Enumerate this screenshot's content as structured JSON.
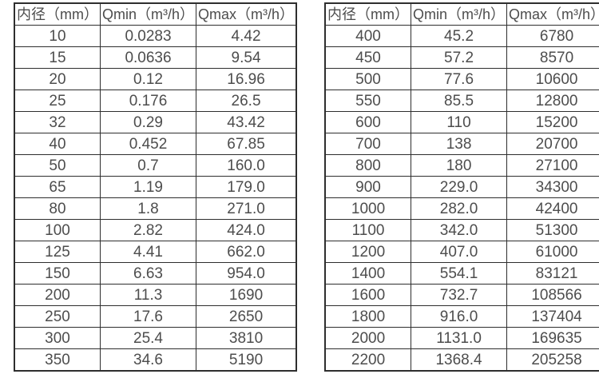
{
  "tables": [
    {
      "name": "small-diameter-flow-table",
      "headers": [
        "内径（mm）",
        "Qmin（m³/h）",
        "Qmax（m³/h）"
      ],
      "rows": [
        [
          "10",
          "0.0283",
          "4.42"
        ],
        [
          "15",
          "0.0636",
          "9.54"
        ],
        [
          "20",
          "0.12",
          "16.96"
        ],
        [
          "25",
          "0.176",
          "26.5"
        ],
        [
          "32",
          "0.29",
          "43.42"
        ],
        [
          "40",
          "0.452",
          "67.85"
        ],
        [
          "50",
          "0.7",
          "160.0"
        ],
        [
          "65",
          "1.19",
          "179.0"
        ],
        [
          "80",
          "1.8",
          "271.0"
        ],
        [
          "100",
          "2.82",
          "424.0"
        ],
        [
          "125",
          "4.41",
          "662.0"
        ],
        [
          "150",
          "6.63",
          "954.0"
        ],
        [
          "200",
          "11.3",
          "1690"
        ],
        [
          "250",
          "17.6",
          "2650"
        ],
        [
          "300",
          "25.4",
          "3810"
        ],
        [
          "350",
          "34.6",
          "5190"
        ]
      ]
    },
    {
      "name": "large-diameter-flow-table",
      "headers": [
        "内径（mm）",
        "Qmin（m³/h）",
        "Qmax（m³/h）"
      ],
      "rows": [
        [
          "400",
          "45.2",
          "6780"
        ],
        [
          "450",
          "57.2",
          "8570"
        ],
        [
          "500",
          "77.6",
          "10600"
        ],
        [
          "550",
          "85.5",
          "12800"
        ],
        [
          "600",
          "110",
          "15200"
        ],
        [
          "700",
          "138",
          "20700"
        ],
        [
          "800",
          "180",
          "27100"
        ],
        [
          "900",
          "229.0",
          "34300"
        ],
        [
          "1000",
          "282.0",
          "42400"
        ],
        [
          "1100",
          "342.0",
          "51300"
        ],
        [
          "1200",
          "407.0",
          "61000"
        ],
        [
          "1400",
          "554.1",
          "83121"
        ],
        [
          "1600",
          "732.7",
          "108566"
        ],
        [
          "1800",
          "916.0",
          "137404"
        ],
        [
          "2000",
          "1131.0",
          "169635"
        ],
        [
          "2200",
          "1368.4",
          "205258"
        ]
      ]
    }
  ],
  "colors": {
    "text": "#4d4d4d",
    "border": "#2e2e2e",
    "background": "#ffffff"
  }
}
